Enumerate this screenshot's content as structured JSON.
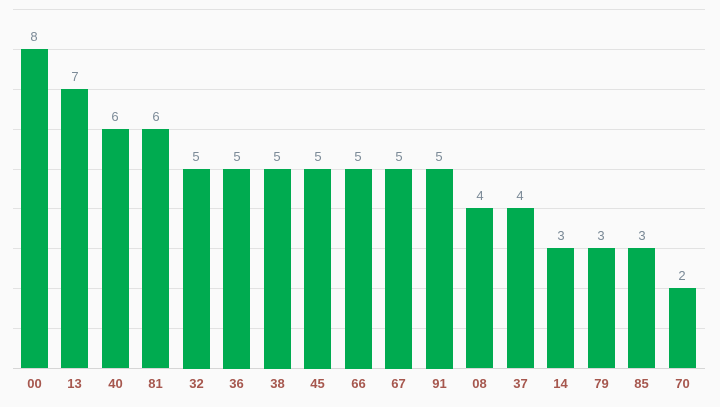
{
  "chart_data": {
    "type": "bar",
    "categories": [
      "00",
      "13",
      "40",
      "81",
      "32",
      "36",
      "38",
      "45",
      "66",
      "67",
      "91",
      "08",
      "37",
      "14",
      "79",
      "85",
      "70"
    ],
    "values": [
      8,
      7,
      6,
      6,
      5,
      5,
      5,
      5,
      5,
      5,
      5,
      4,
      4,
      3,
      3,
      3,
      2
    ],
    "title": "",
    "xlabel": "",
    "ylabel": "",
    "ylim": [
      0,
      9
    ],
    "grid": true,
    "legend": "none",
    "value_labels_shown": true,
    "y_axis_labels_shown": false,
    "colors": {
      "bar": "#00ab50",
      "value_label": "#7b8a97",
      "category_label": "#a6574e",
      "gridline": "#e2e2e2",
      "axis_line": "#d6d6d6",
      "background": "#fafafa"
    }
  }
}
